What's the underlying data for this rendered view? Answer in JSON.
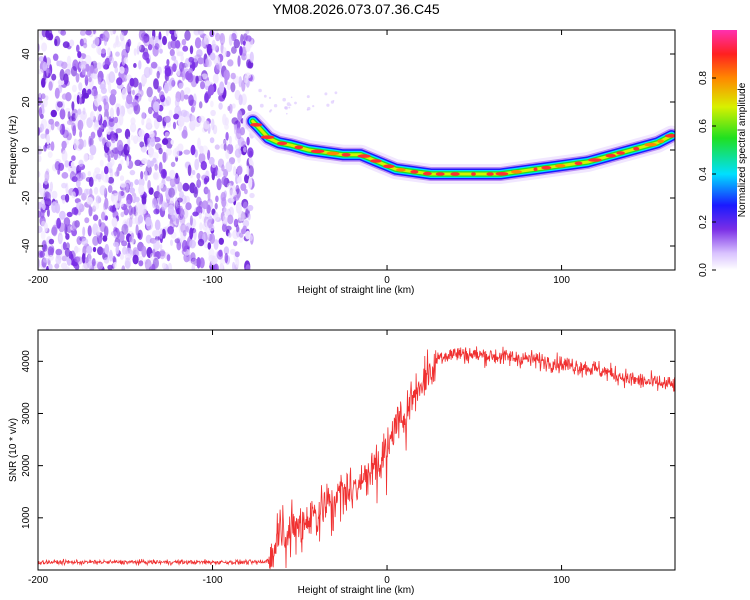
{
  "title": "YM08.2026.073.07.36.C45",
  "colors": {
    "snr_line": "#f03030",
    "ridge_core": "#ff3030",
    "noise": "#7a2ee6",
    "axis": "#000000"
  },
  "chart_data": [
    {
      "type": "heatmap",
      "name": "spectrogram",
      "xlabel": "Height of straight line (km)",
      "ylabel": "Frequency (Hz)",
      "xlim": [
        -200,
        165
      ],
      "ylim": [
        -50,
        50
      ],
      "xticks": [
        -200,
        -100,
        0,
        100
      ],
      "yticks": [
        -40,
        -20,
        0,
        20,
        40
      ],
      "noise_region_x": [
        -200,
        -77
      ],
      "ridge": {
        "x": [
          -77,
          -73,
          -68,
          -62,
          -55,
          -45,
          -35,
          -25,
          -15,
          -5,
          5,
          15,
          25,
          35,
          45,
          55,
          65,
          75,
          85,
          95,
          105,
          115,
          125,
          135,
          145,
          155,
          163
        ],
        "y": [
          12,
          9,
          5,
          3,
          2,
          0,
          -1,
          -2,
          -2,
          -5,
          -8,
          -9,
          -10,
          -10,
          -10,
          -10,
          -10,
          -9,
          -8,
          -7,
          -6,
          -5,
          -3,
          -1,
          1,
          3,
          6
        ]
      },
      "colorbar": {
        "label": "Normalized spectral amplitude",
        "range": [
          0,
          1
        ],
        "ticks": [
          "0.0",
          "0.2",
          "0.4",
          "0.6",
          "0.8"
        ]
      }
    },
    {
      "type": "line",
      "name": "snr",
      "xlabel": "Height of straight line (km)",
      "ylabel": "SNR (10 * v/v)",
      "xlim": [
        -200,
        165
      ],
      "ylim": [
        0,
        4600
      ],
      "xticks": [
        -200,
        -100,
        0,
        100
      ],
      "yticks": [
        1000,
        2000,
        3000,
        4000
      ],
      "series": [
        {
          "name": "SNR",
          "x": [
            -200,
            -150,
            -100,
            -70,
            -65,
            -62,
            -58,
            -50,
            -40,
            -30,
            -20,
            -10,
            0,
            5,
            10,
            15,
            20,
            25,
            30,
            40,
            60,
            80,
            100,
            120,
            140,
            150,
            163
          ],
          "y": [
            150,
            150,
            150,
            150,
            300,
            900,
            700,
            900,
            1150,
            1400,
            1600,
            1900,
            2300,
            2800,
            3000,
            3400,
            3650,
            3900,
            4100,
            4150,
            4100,
            4050,
            3950,
            3850,
            3650,
            3600,
            3550
          ]
        }
      ]
    }
  ]
}
